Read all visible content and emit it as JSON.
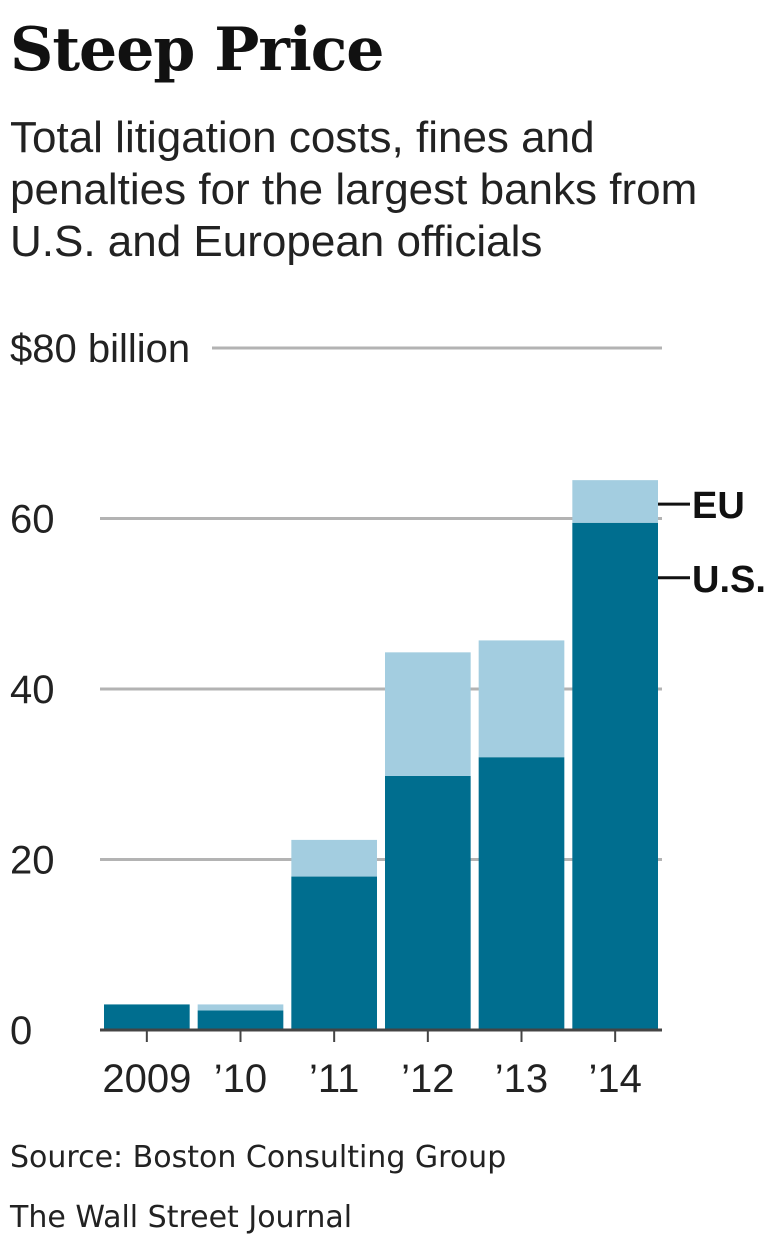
{
  "title": "Steep Price",
  "subtitle": "Total litigation costs, fines and penalties for the largest banks from U.S. and European officials",
  "source": "Source: Boston Consulting Group",
  "credit": "The Wall Street Journal",
  "chart_data": {
    "type": "bar",
    "stacked": true,
    "categories": [
      "2009",
      "’10",
      "’11",
      "’12",
      "’13",
      "’14"
    ],
    "series": [
      {
        "name": "U.S.",
        "values": [
          3,
          2.3,
          18,
          29.8,
          32,
          59.5
        ],
        "color": "#006e8f"
      },
      {
        "name": "EU",
        "values": [
          0,
          0.7,
          4.3,
          14.5,
          13.7,
          5
        ],
        "color": "#a3cde0"
      }
    ],
    "yticks": [
      "0",
      "20",
      "40",
      "60",
      "$80 billion"
    ],
    "ytick_values": [
      0,
      20,
      40,
      60,
      80
    ],
    "ylim": [
      0,
      80
    ],
    "legend": "right of last bar",
    "grid": true
  }
}
